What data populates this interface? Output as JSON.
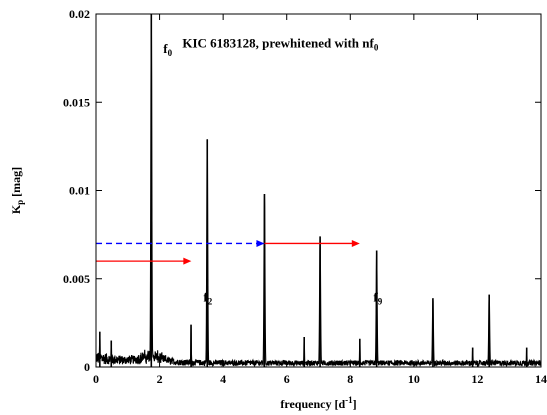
{
  "chart_data": {
    "type": "line",
    "title": "",
    "xlabel": "frequency [d",
    "xlabel_sup": "-1",
    "xlabel_end": "]",
    "ylabel": "K",
    "ylabel_sub": "p",
    "ylabel_end": " [mag]",
    "xlim": [
      0,
      14
    ],
    "ylim": [
      0,
      0.02
    ],
    "x_ticks": [
      0,
      2,
      4,
      6,
      8,
      10,
      12,
      14
    ],
    "x_tick_labels": [
      "0",
      "2",
      "4",
      "6",
      "8",
      "10",
      "12",
      "14"
    ],
    "y_ticks": [
      0,
      0.005,
      0.01,
      0.015,
      0.02
    ],
    "y_tick_labels": [
      "0",
      "0.005",
      "0.01",
      "0.015",
      "0.02"
    ],
    "grid": false,
    "series": [
      {
        "color": "#000000",
        "peaks": [
          {
            "x": 1.74,
            "y": 0.02
          },
          {
            "x": 3.5,
            "y": 0.0129
          },
          {
            "x": 5.3,
            "y": 0.0098
          },
          {
            "x": 7.05,
            "y": 0.0074
          },
          {
            "x": 8.83,
            "y": 0.0066
          },
          {
            "x": 10.6,
            "y": 0.0039
          },
          {
            "x": 12.37,
            "y": 0.0041
          },
          {
            "x": 2.99,
            "y": 0.0024
          },
          {
            "x": 6.55,
            "y": 0.0017
          },
          {
            "x": 8.3,
            "y": 0.0016
          },
          {
            "x": 11.85,
            "y": 0.0011
          },
          {
            "x": 13.55,
            "y": 0.0011
          },
          {
            "x": 0.48,
            "y": 0.0015
          },
          {
            "x": 0.12,
            "y": 0.002
          }
        ]
      }
    ],
    "annotations": [
      {
        "text": "f",
        "sub": "0",
        "x": 1.74,
        "y": 0.0178
      },
      {
        "text": "f",
        "sub": "2",
        "x": 3.0,
        "y": 0.0037
      },
      {
        "text": "f",
        "sub": "9",
        "x": 8.35,
        "y": 0.0037
      },
      {
        "text": "KIC 6183128, prewhitened with nf",
        "sub": "0",
        "x": 5.8,
        "y": 0.0181
      }
    ],
    "arrows": [
      {
        "x1": 0.0,
        "x2": 3.0,
        "y": 0.006,
        "color": "#ff0000",
        "dashed": false
      },
      {
        "x1": 0.0,
        "x2": 5.3,
        "y": 0.007,
        "color": "#0000ff",
        "dashed": true
      },
      {
        "x1": 5.3,
        "x2": 8.3,
        "y": 0.007,
        "color": "#ff0000",
        "dashed": false
      }
    ]
  }
}
